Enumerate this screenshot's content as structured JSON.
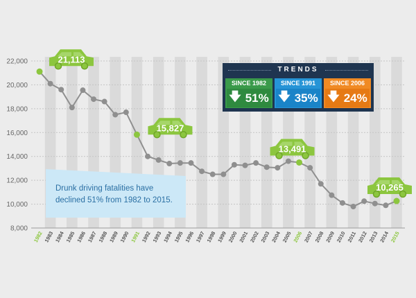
{
  "chart_data": {
    "type": "line",
    "x": [
      "1982",
      "1983",
      "1984",
      "1985",
      "1986",
      "1987",
      "1988",
      "1989",
      "1990",
      "1991",
      "1992",
      "1993",
      "1994",
      "1995",
      "1996",
      "1997",
      "1998",
      "1999",
      "2000",
      "2001",
      "2002",
      "2003",
      "2004",
      "2005",
      "2006",
      "2007",
      "2008",
      "2009",
      "2010",
      "2011",
      "2012",
      "2013",
      "2014",
      "2015"
    ],
    "y": [
      21113,
      20100,
      19600,
      18100,
      19550,
      18800,
      18600,
      17500,
      17700,
      15827,
      14000,
      13700,
      13400,
      13450,
      13450,
      12750,
      12500,
      12500,
      13300,
      13250,
      13450,
      13100,
      13050,
      13600,
      13491,
      13050,
      11700,
      10750,
      10100,
      9800,
      10250,
      10050,
      9900,
      10265
    ],
    "highlight_years": [
      "1982",
      "1991",
      "2006",
      "2015"
    ],
    "ylim": [
      8000,
      22000
    ],
    "yticks": [
      "8,000",
      "10,000",
      "12,000",
      "14,000",
      "16,000",
      "18,000",
      "20,000",
      "22,000"
    ],
    "grid": true,
    "callouts": [
      {
        "year": "1982",
        "label": "21,113"
      },
      {
        "year": "1991",
        "label": "15,827"
      },
      {
        "year": "2006",
        "label": "13,491"
      },
      {
        "year": "2015",
        "label": "10,265"
      }
    ],
    "colors": {
      "line": "#8f8f8f",
      "point": "#8f8f8f",
      "highlight": "#8cc63f",
      "callout": "#8cc63f"
    }
  },
  "trends": {
    "title": "TRENDS",
    "items": [
      {
        "label": "SINCE 1982",
        "value": "51%",
        "head_color": "#3a9a4a",
        "body_color": "#2f8a3f"
      },
      {
        "label": "SINCE 1991",
        "value": "35%",
        "head_color": "#2694d6",
        "body_color": "#1a84c8"
      },
      {
        "label": "SINCE 2006",
        "value": "24%",
        "head_color": "#f08a24",
        "body_color": "#e67a14"
      }
    ]
  },
  "note": {
    "text": "Drunk driving fatalities have declined 51% from 1982 to 2015."
  }
}
